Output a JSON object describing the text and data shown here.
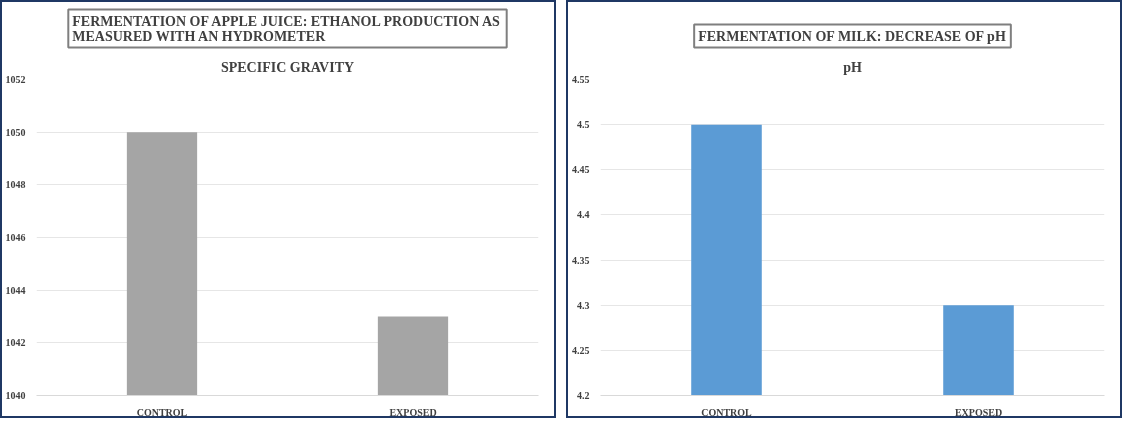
{
  "chart_data": [
    {
      "type": "bar",
      "title": "FERMENTATION OF APPLE JUICE: ETHANOL PRODUCTION AS MEASURED WITH AN HYDROMETER",
      "subtitle": "SPECIFIC GRAVITY",
      "categories": [
        "CONTROL",
        "EXPOSED"
      ],
      "values": [
        1050,
        1043
      ],
      "color": "#a5a5a5",
      "ylim": [
        1040,
        1052
      ],
      "yticks": [
        1040,
        1042,
        1044,
        1046,
        1048,
        1050,
        1052
      ],
      "grid": "y"
    },
    {
      "type": "bar",
      "title": "FERMENTATION OF MILK: DECREASE OF pH",
      "subtitle": "pH",
      "categories": [
        "CONTROL",
        "EXPOSED"
      ],
      "values": [
        4.5,
        4.3
      ],
      "color": "#5b9bd5",
      "ylim": [
        4.2,
        4.55
      ],
      "yticks": [
        4.2,
        4.25,
        4.3,
        4.35,
        4.4,
        4.45,
        4.5,
        4.55
      ],
      "grid": "y"
    }
  ]
}
